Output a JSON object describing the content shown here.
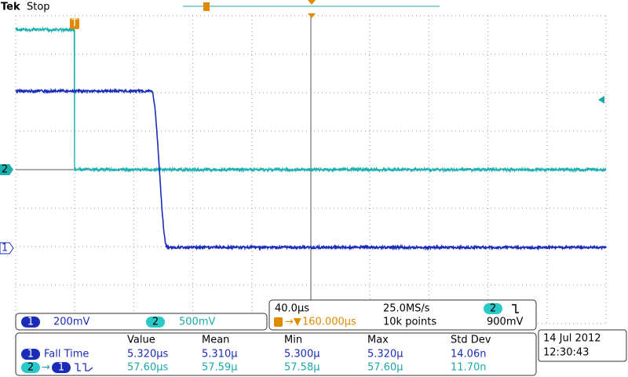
{
  "header": {
    "brand": "Tek",
    "status": "Stop"
  },
  "markers": {
    "ch2": "2",
    "ch1": "1",
    "trigger": "T"
  },
  "channels": [
    {
      "badge": "1",
      "scale": "200mV"
    },
    {
      "badge": "2",
      "scale": "500mV"
    }
  ],
  "timebase": {
    "horizontal": "40.0µs",
    "sample_rate": "25.0MS/s",
    "trigger_source": "2",
    "trigger_level": "900mV",
    "delay": "160.000µs",
    "record_length": "10k points"
  },
  "measurements": {
    "headers": [
      "Value",
      "Mean",
      "Min",
      "Max",
      "Std Dev"
    ],
    "rows": [
      {
        "source": "1",
        "name": "Fall Time",
        "cells": [
          "5.320µs",
          "5.310µ",
          "5.300µ",
          "5.320µ",
          "14.06n"
        ]
      },
      {
        "source": "2",
        "target": "1",
        "cells": [
          "57.60µs",
          "57.59µ",
          "57.58µ",
          "57.60µ",
          "11.70n"
        ]
      }
    ]
  },
  "datetime": {
    "date": "14 Jul 2012",
    "time": "12:30:43"
  }
}
